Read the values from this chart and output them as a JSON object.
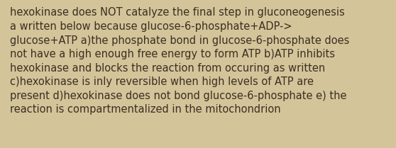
{
  "background_color": "#d4c49a",
  "text_color": "#3a3020",
  "lines": [
    "hexokinase does NOT catalyze the final step in gluconeogenesis",
    "a written below because glucose-6-phosphate+ADP->",
    "glucose+ATP a)the phosphate bond in glucose-6-phosphate does",
    "not have a high enough free energy to form ATP b)ATP inhibits",
    "hexokinase and blocks the reaction from occuring as written",
    "c)hexokinase is inly reversible when high levels of ATP are",
    "present d)hexokinase does not bond glucose-6-phosphate e) the",
    "reaction is compartmentalized in the mitochondrion"
  ],
  "font_size": 10.5,
  "fig_width": 5.58,
  "fig_height": 2.09,
  "dpi": 100
}
